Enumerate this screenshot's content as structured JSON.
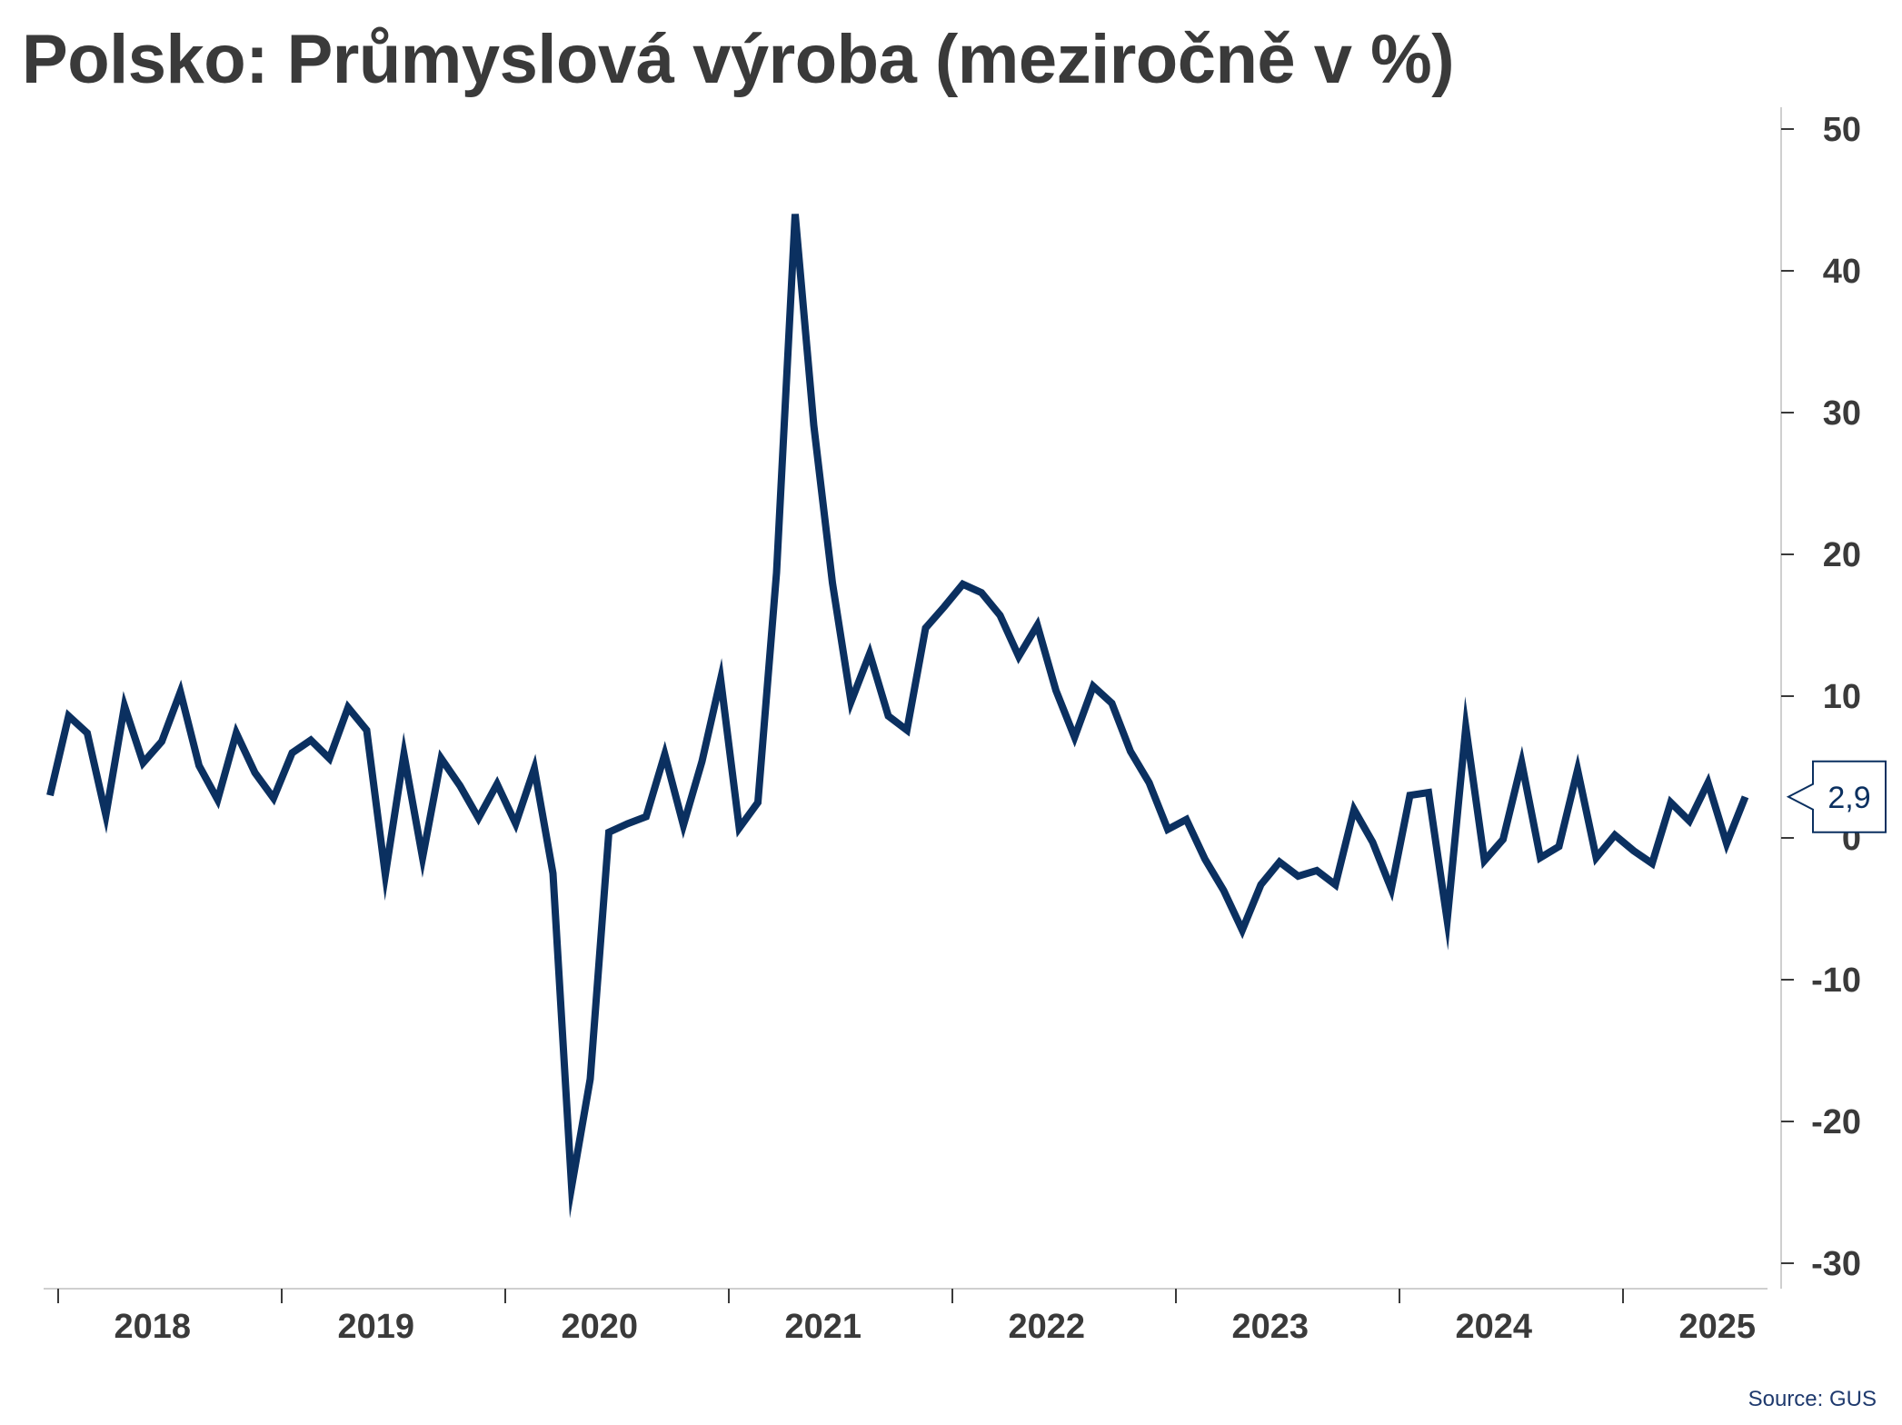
{
  "title": "Polsko: Průmyslová výroba (meziročně v %)",
  "source": "Source: GUS",
  "colors": {
    "line": "#0b3060",
    "text": "#3a3a3a",
    "axis": "#cfcfcf",
    "source": "#1f3a6e"
  },
  "chart_data": {
    "type": "line",
    "title": "Polsko: Průmyslová výroba (meziročně v %)",
    "xlabel": "",
    "ylabel": "",
    "x_start": "2018-01",
    "x_end": "2025-04",
    "x_ticks": [
      "2018",
      "2019",
      "2020",
      "2021",
      "2022",
      "2023",
      "2024",
      "2025"
    ],
    "ylim": [
      -32,
      51
    ],
    "y_ticks": [
      50,
      40,
      30,
      20,
      10,
      0,
      -10,
      -20,
      -30
    ],
    "y_axis_position": "right",
    "grid": false,
    "legend": "none",
    "last_value_label": "2,9",
    "series": [
      {
        "values": [
          3.0,
          8.6,
          7.4,
          1.6,
          9.3,
          5.3,
          6.8,
          10.3,
          5.1,
          2.7,
          7.4,
          4.6,
          2.8,
          6.0,
          6.9,
          5.6,
          9.2,
          7.6,
          -2.6,
          5.9,
          -1.4,
          5.6,
          3.7,
          1.4,
          3.8,
          1.0,
          4.9,
          -2.5,
          -24.6,
          -17.0,
          0.4,
          1.0,
          1.5,
          5.9,
          0.9,
          5.4,
          11.2,
          0.7,
          2.5,
          18.7,
          44.0,
          29.1,
          18.0,
          9.6,
          13.0,
          8.6,
          7.6,
          14.8,
          16.3,
          17.9,
          17.3,
          15.7,
          12.8,
          15.0,
          10.4,
          7.1,
          10.7,
          9.5,
          6.1,
          3.9,
          0.6,
          1.3,
          -1.5,
          -3.7,
          -6.5,
          -3.3,
          -1.7,
          -2.7,
          -2.3,
          -3.3,
          2.0,
          -0.3,
          -3.6,
          3.0,
          3.2,
          -5.8,
          7.8,
          -1.6,
          -0.1,
          5.3,
          -1.4,
          -0.6,
          4.8,
          -1.4,
          0.2,
          -0.9,
          -1.8,
          2.5,
          1.2,
          3.9,
          -0.4,
          2.9
        ]
      }
    ]
  }
}
